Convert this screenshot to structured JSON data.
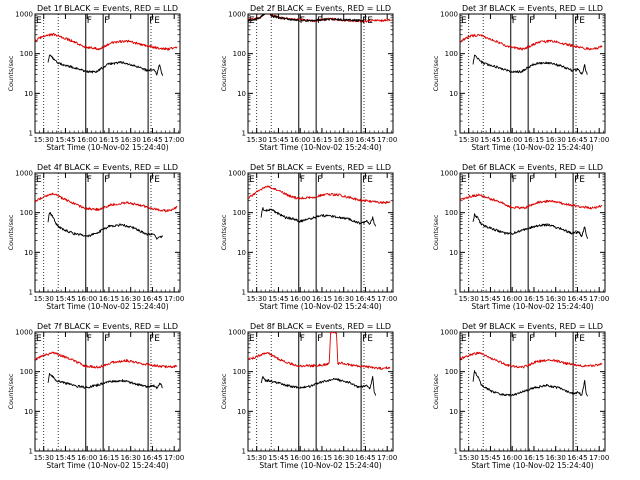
{
  "chart_data": {
    "type": "line",
    "layout": "3x3 grid",
    "log_y": true,
    "ylim": [
      1,
      1000
    ],
    "y_ticks": [
      "1",
      "10",
      "100",
      "1000"
    ],
    "ylabel": "Counts/sec",
    "xlim": [
      "15:24",
      "17:04"
    ],
    "x_ticks": [
      "15:30",
      "15:45",
      "16:00",
      "16:15",
      "16:30",
      "16:45",
      "17:00"
    ],
    "xlabel": "Start Time (10-Nov-02 15:24:40)",
    "colors": {
      "events": "#000000",
      "lld": "#dd0000",
      "frame": "#000000",
      "background": "#ffffff"
    },
    "dotted_lines_at": [
      "15:30",
      "15:40",
      "16:44"
    ],
    "solid_lines_at": [
      "15:59",
      "16:11",
      "16:42"
    ],
    "markers": [
      {
        "text": "E",
        "at": "15:24"
      },
      {
        "text": "F",
        "at": "15:59"
      },
      {
        "text": "F",
        "at": "16:11"
      },
      {
        "text": "FE",
        "at": "16:42"
      }
    ],
    "panels": [
      {
        "title": "Det 1f BLACK = Events, RED = LLD",
        "series": [
          {
            "name": "RED = LLD",
            "color": "#dd0000",
            "x": [
              "15:24",
              "15:30",
              "15:37",
              "15:44",
              "15:51",
              "15:58",
              "16:08",
              "16:17",
              "16:27",
              "16:38",
              "16:48",
              "16:56",
              "17:02"
            ],
            "y": [
              210,
              280,
              310,
              250,
              200,
              150,
              130,
              190,
              210,
              170,
              140,
              130,
              150
            ]
          },
          {
            "name": "BLACK = Events",
            "color": "#000000",
            "x": [
              "15:33",
              "15:34",
              "15:36",
              "15:39",
              "15:42",
              "15:46",
              "15:50",
              "15:55",
              "16:00",
              "16:06",
              "16:15",
              "16:24",
              "16:33",
              "16:41",
              "16:46",
              "16:48",
              "16:50",
              "16:51",
              "16:52"
            ],
            "y": [
              60,
              95,
              80,
              60,
              55,
              50,
              45,
              40,
              35,
              35,
              55,
              60,
              50,
              38,
              40,
              30,
              55,
              35,
              28
            ]
          }
        ]
      },
      {
        "title": "Det 2f BLACK = Events, RED = LLD",
        "series": [
          {
            "name": "RED = LLD",
            "color": "#dd0000",
            "x": [
              "15:24",
              "15:32",
              "15:37",
              "15:41",
              "15:47",
              "15:58",
              "16:10",
              "16:20",
              "16:32",
              "16:44",
              "16:52",
              "17:02"
            ],
            "y": [
              700,
              800,
              1100,
              900,
              800,
              720,
              680,
              750,
              690,
              660,
              680,
              700
            ]
          },
          {
            "name": "BLACK = Events",
            "color": "#000000",
            "x": [
              "15:24",
              "15:32",
              "15:37",
              "15:41",
              "15:47",
              "15:58",
              "16:10",
              "16:20",
              "16:32",
              "16:44"
            ],
            "y": [
              680,
              780,
              1150,
              880,
              790,
              700,
              690,
              740,
              700,
              680
            ]
          }
        ]
      },
      {
        "title": "Det 3f BLACK = Events, RED = LLD",
        "series": [
          {
            "name": "RED = LLD",
            "color": "#dd0000",
            "x": [
              "15:24",
              "15:30",
              "15:37",
              "15:44",
              "15:51",
              "15:58",
              "16:08",
              "16:17",
              "16:27",
              "16:38",
              "16:48",
              "16:56",
              "17:02"
            ],
            "y": [
              200,
              270,
              300,
              240,
              190,
              145,
              130,
              190,
              210,
              170,
              140,
              130,
              150
            ]
          },
          {
            "name": "BLACK = Events",
            "color": "#000000",
            "x": [
              "15:33",
              "15:34",
              "15:36",
              "15:39",
              "15:42",
              "15:46",
              "15:50",
              "15:55",
              "16:00",
              "16:06",
              "16:15",
              "16:24",
              "16:33",
              "16:41",
              "16:46",
              "16:48",
              "16:50",
              "16:51",
              "16:52"
            ],
            "y": [
              55,
              90,
              75,
              60,
              55,
              50,
              45,
              40,
              35,
              35,
              55,
              60,
              50,
              38,
              40,
              30,
              50,
              35,
              30
            ]
          }
        ]
      },
      {
        "title": "Det 4f BLACK = Events, RED = LLD",
        "series": [
          {
            "name": "RED = LLD",
            "color": "#dd0000",
            "x": [
              "15:24",
              "15:30",
              "15:37",
              "15:44",
              "15:51",
              "15:58",
              "16:08",
              "16:17",
              "16:27",
              "16:38",
              "16:48",
              "16:56",
              "17:02"
            ],
            "y": [
              190,
              250,
              300,
              220,
              170,
              130,
              120,
              160,
              180,
              150,
              120,
              110,
              140
            ]
          },
          {
            "name": "BLACK = Events",
            "color": "#000000",
            "x": [
              "15:33",
              "15:34",
              "15:36",
              "15:39",
              "15:42",
              "15:46",
              "15:50",
              "15:55",
              "16:00",
              "16:06",
              "16:15",
              "16:24",
              "16:33",
              "16:41",
              "16:46",
              "16:48",
              "16:50",
              "16:51",
              "16:52"
            ],
            "y": [
              60,
              100,
              85,
              50,
              40,
              35,
              30,
              28,
              25,
              30,
              45,
              50,
              40,
              28,
              30,
              22,
              25,
              24,
              25
            ]
          }
        ]
      },
      {
        "title": "Det 5f BLACK = Events, RED = LLD",
        "series": [
          {
            "name": "RED = LLD",
            "color": "#dd0000",
            "x": [
              "15:24",
              "15:30",
              "15:37",
              "15:44",
              "15:51",
              "15:58",
              "16:08",
              "16:17",
              "16:27",
              "16:38",
              "16:48",
              "16:56",
              "17:02"
            ],
            "y": [
              230,
              330,
              460,
              380,
              280,
              230,
              240,
              290,
              280,
              220,
              190,
              180,
              180
            ]
          },
          {
            "name": "BLACK = Events",
            "color": "#000000",
            "x": [
              "15:33",
              "15:34",
              "15:36",
              "15:39",
              "15:42",
              "15:46",
              "15:50",
              "15:55",
              "16:00",
              "16:06",
              "16:15",
              "16:24",
              "16:33",
              "16:41",
              "16:46",
              "16:48",
              "16:50",
              "16:51",
              "16:52"
            ],
            "y": [
              80,
              130,
              110,
              120,
              110,
              90,
              75,
              70,
              60,
              70,
              85,
              80,
              70,
              55,
              60,
              50,
              75,
              55,
              45
            ]
          }
        ]
      },
      {
        "title": "Det 6f BLACK = Events, RED = LLD",
        "series": [
          {
            "name": "RED = LLD",
            "color": "#dd0000",
            "x": [
              "15:24",
              "15:30",
              "15:37",
              "15:44",
              "15:51",
              "15:58",
              "16:08",
              "16:17",
              "16:27",
              "16:38",
              "16:48",
              "16:56",
              "17:02"
            ],
            "y": [
              210,
              250,
              280,
              230,
              190,
              140,
              130,
              180,
              200,
              160,
              140,
              130,
              150
            ]
          },
          {
            "name": "BLACK = Events",
            "color": "#000000",
            "x": [
              "15:33",
              "15:34",
              "15:36",
              "15:39",
              "15:42",
              "15:46",
              "15:50",
              "15:55",
              "16:00",
              "16:06",
              "16:15",
              "16:24",
              "16:33",
              "16:41",
              "16:46",
              "16:48",
              "16:50",
              "16:51",
              "16:52"
            ],
            "y": [
              55,
              90,
              75,
              50,
              45,
              40,
              35,
              30,
              30,
              35,
              45,
              50,
              40,
              30,
              32,
              25,
              45,
              30,
              22
            ]
          }
        ]
      },
      {
        "title": "Det 7f BLACK = Events, RED = LLD",
        "series": [
          {
            "name": "RED = LLD",
            "color": "#dd0000",
            "x": [
              "15:24",
              "15:30",
              "15:37",
              "15:44",
              "15:51",
              "15:58",
              "16:08",
              "16:17",
              "16:27",
              "16:38",
              "16:48",
              "16:56",
              "17:02"
            ],
            "y": [
              200,
              260,
              300,
              240,
              190,
              140,
              130,
              170,
              190,
              160,
              140,
              130,
              140
            ]
          },
          {
            "name": "BLACK = Events",
            "color": "#000000",
            "x": [
              "15:33",
              "15:34",
              "15:36",
              "15:39",
              "15:42",
              "15:46",
              "15:50",
              "15:55",
              "16:00",
              "16:06",
              "16:15",
              "16:24",
              "16:33",
              "16:41",
              "16:46",
              "16:48",
              "16:50",
              "16:51",
              "16:52"
            ],
            "y": [
              50,
              90,
              75,
              60,
              55,
              50,
              45,
              42,
              40,
              45,
              55,
              60,
              50,
              42,
              45,
              38,
              50,
              45,
              40
            ]
          }
        ]
      },
      {
        "title": "Det 8f BLACK = Events, RED = LLD",
        "series": [
          {
            "name": "RED = LLD",
            "color": "#dd0000",
            "x": [
              "15:24",
              "15:30",
              "15:37",
              "15:44",
              "15:51",
              "15:58",
              "16:08",
              "16:17",
              "16:20",
              "16:21",
              "16:25",
              "16:26",
              "16:27",
              "16:38",
              "16:48",
              "16:56",
              "17:02"
            ],
            "y": [
              200,
              240,
              300,
              220,
              170,
              140,
              140,
              150,
              160,
              1000,
              1000,
              150,
              170,
              140,
              130,
              120,
              130
            ]
          },
          {
            "name": "BLACK = Events",
            "color": "#000000",
            "x": [
              "15:33",
              "15:34",
              "15:36",
              "15:39",
              "15:42",
              "15:46",
              "15:50",
              "15:55",
              "16:00",
              "16:06",
              "16:15",
              "16:24",
              "16:33",
              "16:41",
              "16:46",
              "16:48",
              "16:50",
              "16:51",
              "16:52"
            ],
            "y": [
              50,
              75,
              60,
              60,
              55,
              50,
              45,
              42,
              40,
              42,
              55,
              65,
              55,
              40,
              45,
              35,
              80,
              30,
              25
            ]
          }
        ]
      },
      {
        "title": "Det 9f BLACK = Events, RED = LLD",
        "series": [
          {
            "name": "RED = LLD",
            "color": "#dd0000",
            "x": [
              "15:24",
              "15:30",
              "15:37",
              "15:44",
              "15:51",
              "15:58",
              "16:08",
              "16:17",
              "16:27",
              "16:38",
              "16:48",
              "16:56",
              "17:02"
            ],
            "y": [
              210,
              260,
              300,
              230,
              180,
              140,
              130,
              180,
              200,
              160,
              140,
              140,
              160
            ]
          },
          {
            "name": "BLACK = Events",
            "color": "#000000",
            "x": [
              "15:33",
              "15:34",
              "15:36",
              "15:39",
              "15:42",
              "15:46",
              "15:50",
              "15:55",
              "16:00",
              "16:06",
              "16:15",
              "16:24",
              "16:33",
              "16:41",
              "16:46",
              "16:48",
              "16:50",
              "16:51",
              "16:52"
            ],
            "y": [
              55,
              100,
              80,
              45,
              38,
              32,
              28,
              26,
              25,
              30,
              40,
              45,
              38,
              28,
              30,
              25,
              60,
              28,
              24
            ]
          }
        ]
      }
    ]
  }
}
